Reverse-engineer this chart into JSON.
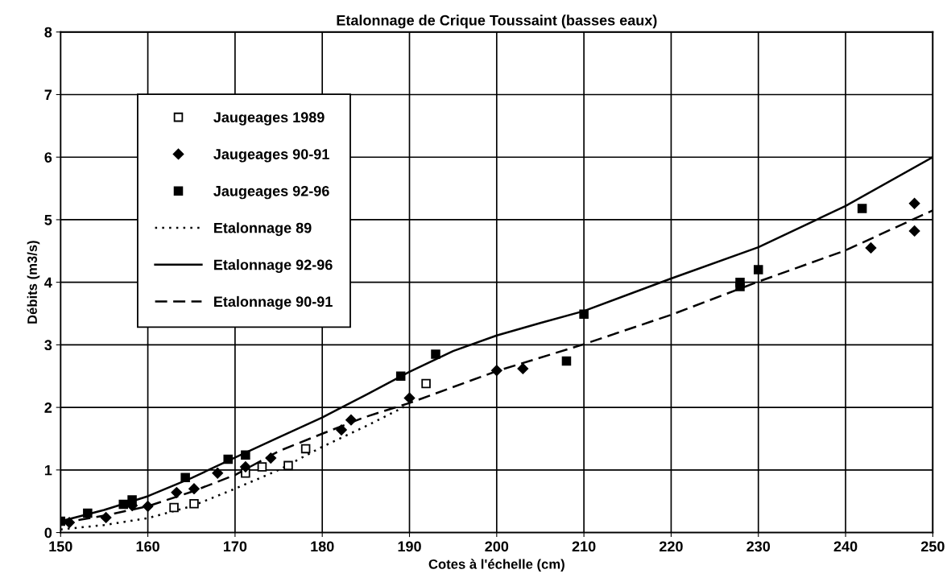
{
  "chart_data": {
    "type": "scatter",
    "title": "Etalonnage de Crique Toussaint (basses eaux)",
    "xlabel": "Cotes à l'échelle (cm)",
    "ylabel": "Débits (m3/s)",
    "xlim": [
      150,
      250
    ],
    "ylim": [
      0,
      8
    ],
    "xticks": [
      150,
      160,
      170,
      180,
      190,
      200,
      210,
      220,
      230,
      240,
      250
    ],
    "yticks": [
      0,
      1,
      2,
      3,
      4,
      5,
      6,
      7,
      8
    ],
    "grid": true,
    "legend": "top left",
    "series": [
      {
        "name": "Jaugeages 1989",
        "marker": "square",
        "color": "#ffffff",
        "x": [
          163,
          165.3,
          171.2,
          173.1,
          176.1,
          178.1,
          191.9
        ],
        "values": [
          0.4,
          0.46,
          0.95,
          1.05,
          1.07,
          1.34,
          2.38
        ]
      },
      {
        "name": "Jaugeages 90-91",
        "marker": "diamond",
        "color": "#000000",
        "x": [
          151,
          155.2,
          158.2,
          160,
          163.3,
          165.3,
          168,
          171.2,
          174.1,
          182.2,
          183.3,
          190,
          200,
          203,
          242.9,
          247.9,
          247.9
        ],
        "values": [
          0.16,
          0.24,
          0.43,
          0.42,
          0.64,
          0.7,
          0.95,
          1.05,
          1.19,
          1.64,
          1.8,
          2.15,
          2.59,
          2.62,
          4.55,
          5.26,
          4.82
        ]
      },
      {
        "name": "Jaugeages 92-96",
        "marker": "square",
        "color": "#000000",
        "x": [
          150,
          153.1,
          157.2,
          158.2,
          164.3,
          169.2,
          171.2,
          189,
          193,
          208,
          210,
          227.9,
          227.9,
          230,
          241.9
        ],
        "values": [
          0.18,
          0.31,
          0.45,
          0.52,
          0.88,
          1.17,
          1.24,
          2.5,
          2.85,
          2.74,
          3.49,
          3.93,
          4.0,
          4.2,
          5.18
        ]
      },
      {
        "name": "Etalonnage 89",
        "type": "line",
        "line_style": "dotted",
        "color": "#000000",
        "x": [
          150,
          155,
          160,
          165,
          170,
          175,
          180,
          185,
          190
        ],
        "values": [
          0.05,
          0.12,
          0.23,
          0.42,
          0.7,
          1.0,
          1.37,
          1.7,
          2.05
        ]
      },
      {
        "name": "Etalonnage 92-96",
        "type": "line",
        "line_style": "solid",
        "color": "#000000",
        "x": [
          150,
          155,
          160,
          165,
          170,
          175,
          180,
          185,
          190,
          195,
          200,
          205,
          210,
          220,
          230,
          240,
          250
        ],
        "values": [
          0.18,
          0.36,
          0.58,
          0.87,
          1.2,
          1.52,
          1.84,
          2.2,
          2.57,
          2.9,
          3.15,
          3.35,
          3.54,
          4.06,
          4.56,
          5.22,
          6.0
        ]
      },
      {
        "name": "Etalonnage 90-91",
        "type": "line",
        "line_style": "dashed",
        "color": "#000000",
        "x": [
          150,
          155,
          160,
          165,
          170,
          175,
          180,
          185,
          190,
          200,
          210,
          220,
          230,
          240,
          250
        ],
        "values": [
          0.15,
          0.27,
          0.42,
          0.65,
          0.92,
          1.3,
          1.58,
          1.85,
          2.07,
          2.58,
          3.01,
          3.48,
          4.01,
          4.51,
          5.15
        ]
      }
    ]
  }
}
